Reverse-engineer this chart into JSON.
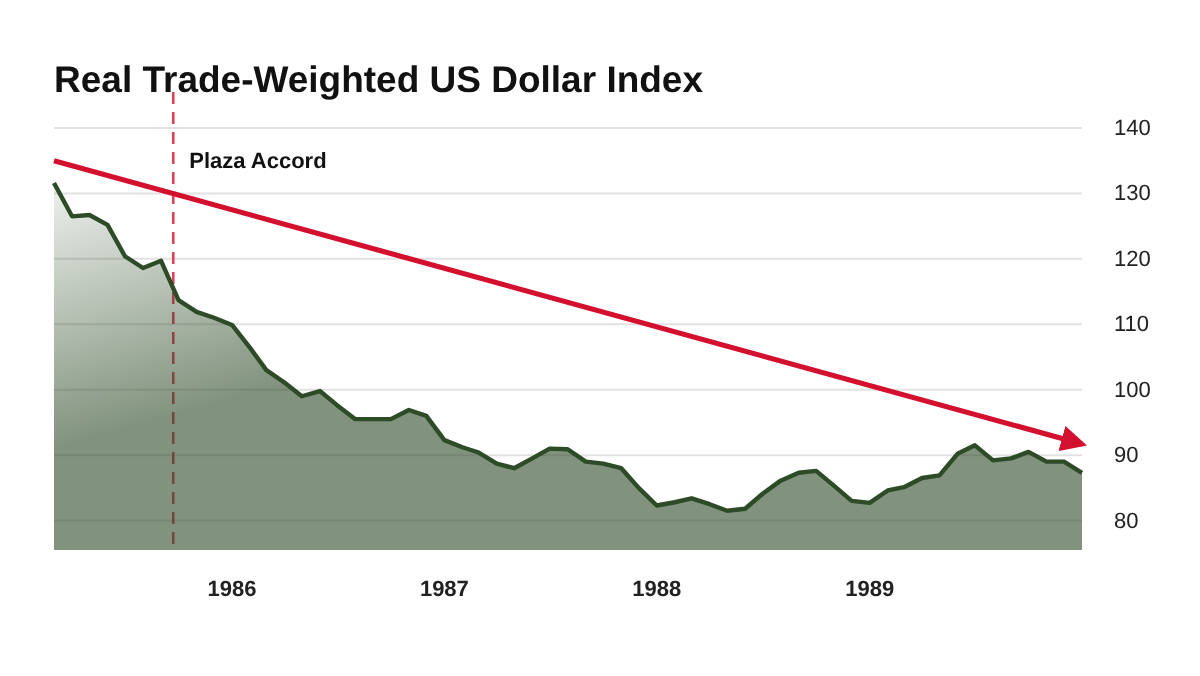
{
  "chart_data": {
    "type": "area",
    "title": "Real Trade-Weighted US Dollar Index",
    "x": [
      "1985-03",
      "1985-04",
      "1985-05",
      "1985-06",
      "1985-07",
      "1985-08",
      "1985-09",
      "1985-10",
      "1985-11",
      "1985-12",
      "1986-01",
      "1986-02",
      "1986-03",
      "1986-04",
      "1986-05",
      "1986-06",
      "1986-07",
      "1986-08",
      "1986-09",
      "1986-10",
      "1986-11",
      "1986-12",
      "1987-01",
      "1987-02",
      "1987-03",
      "1987-04",
      "1987-05",
      "1987-06",
      "1987-07",
      "1987-08",
      "1987-09",
      "1987-10",
      "1987-11",
      "1987-12",
      "1988-01",
      "1988-02",
      "1988-03",
      "1988-04",
      "1988-05",
      "1988-06",
      "1988-07",
      "1988-08",
      "1988-09",
      "1988-10",
      "1988-11",
      "1988-12",
      "1989-01",
      "1989-02",
      "1989-03",
      "1989-04",
      "1989-05",
      "1989-06",
      "1989-07",
      "1989-08",
      "1989-09",
      "1989-10",
      "1989-11",
      "1989-12",
      "1990-01"
    ],
    "series": [
      {
        "color": "#2d4b27",
        "values": [
          131.6,
          126.5,
          126.7,
          125.2,
          120.4,
          118.6,
          119.7,
          113.7,
          111.9,
          111,
          109.9,
          106.4,
          103,
          101.1,
          99,
          99.8,
          97.6,
          95.5,
          95.5,
          95.5,
          96.9,
          96,
          92.3,
          91.2,
          90.4,
          88.7,
          88,
          89.5,
          91,
          90.9,
          89,
          88.7,
          88,
          85,
          82.3,
          82.8,
          83.4,
          82.5,
          81.5,
          81.8,
          84.1,
          86.1,
          87.3,
          87.6,
          85.3,
          83,
          82.7,
          84.6,
          85.1,
          86.5,
          86.9,
          90.2,
          91.5,
          89.2,
          89.5,
          90.5,
          89,
          89,
          87.3
        ]
      },
      {
        "type": "line",
        "color": "#d3112e",
        "x": [
          "1985-03",
          "1990-01"
        ],
        "values": [
          135,
          91.7
        ]
      }
    ],
    "xlim": [
      "1985-03",
      "1990-01"
    ],
    "xticks": [
      {
        "value": "1986-01",
        "label": "1986"
      },
      {
        "value": "1987-01",
        "label": "1987"
      },
      {
        "value": "1988-01",
        "label": "1988"
      },
      {
        "value": "1989-01",
        "label": "1989"
      }
    ],
    "ylim": [
      75.5,
      140
    ],
    "yticks": [
      80,
      90,
      100,
      110,
      120,
      130,
      140
    ],
    "grid": "y",
    "line_style": "solid",
    "ref_lines": [
      {
        "axis": "x",
        "value": "1985-09-22",
        "label": "Plaza Accord",
        "color": "#e0405a",
        "line_style": "dashed"
      }
    ]
  }
}
